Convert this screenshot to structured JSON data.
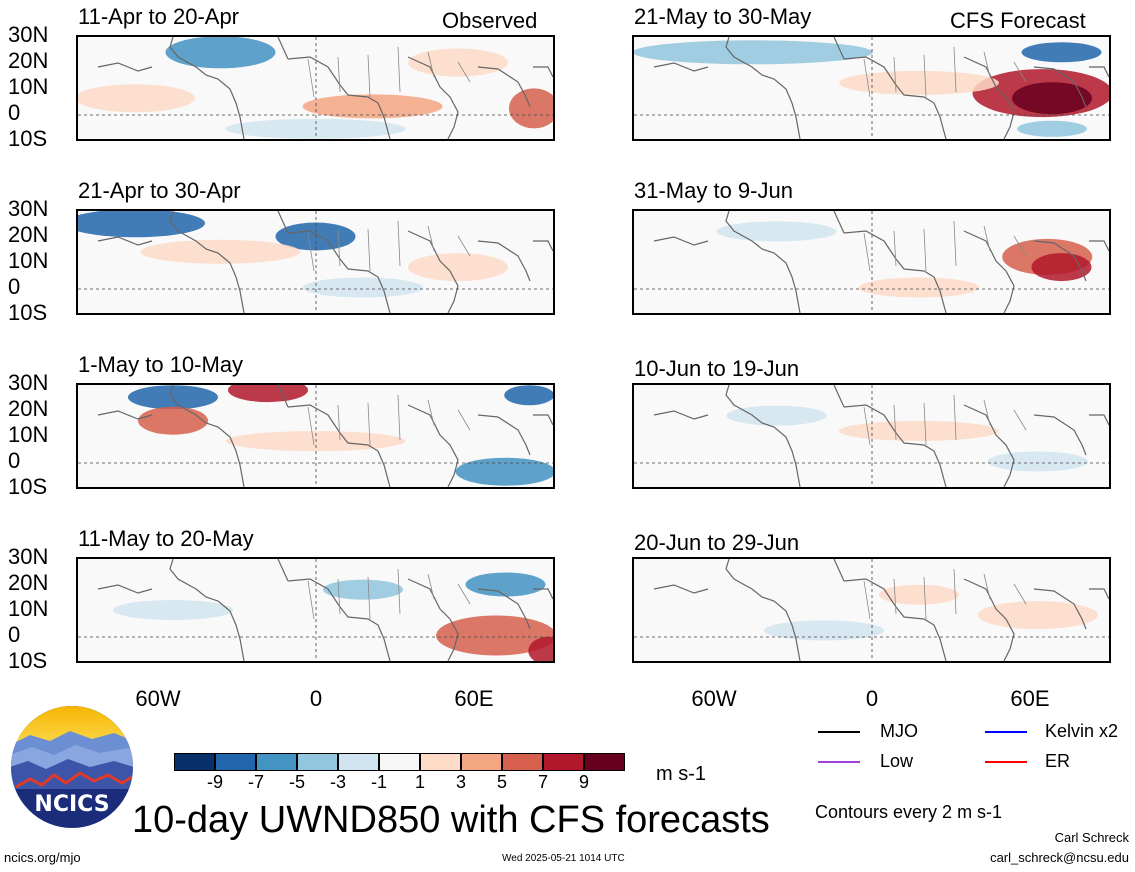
{
  "panels": [
    {
      "id": "obs1",
      "title": "11-Apr to 20-Apr",
      "tag": "Observed"
    },
    {
      "id": "obs2",
      "title": "21-Apr to 30-Apr",
      "tag": ""
    },
    {
      "id": "obs3",
      "title": "1-May to 10-May",
      "tag": ""
    },
    {
      "id": "obs4",
      "title": "11-May to 20-May",
      "tag": ""
    },
    {
      "id": "fc1",
      "title": "21-May to 30-May",
      "tag": "CFS Forecast"
    },
    {
      "id": "fc2",
      "title": "31-May to 9-Jun",
      "tag": ""
    },
    {
      "id": "fc3",
      "title": "10-Jun to 19-Jun",
      "tag": ""
    },
    {
      "id": "fc4",
      "title": "20-Jun to 29-Jun",
      "tag": ""
    }
  ],
  "lat_labels": [
    "30N",
    "20N",
    "10N",
    "0",
    "10S"
  ],
  "lon_labels": [
    "60W",
    "0",
    "60E"
  ],
  "colorbar": {
    "colors": [
      "#08306b",
      "#2166ac",
      "#4393c3",
      "#92c5de",
      "#d1e5f0",
      "#f7f7f7",
      "#fddbc7",
      "#f4a582",
      "#d6604d",
      "#b2182b",
      "#67001f"
    ],
    "labels": [
      "-9",
      "-7",
      "-5",
      "-3",
      "-1",
      "1",
      "3",
      "5",
      "7",
      "9"
    ],
    "unit": "m s-1"
  },
  "legend": {
    "items": [
      {
        "label": "MJO",
        "color": "#000000"
      },
      {
        "label": "Kelvin x2",
        "color": "#0000ff"
      },
      {
        "label": "Low",
        "color": "#a040e0"
      },
      {
        "label": "ER",
        "color": "#ff0000"
      }
    ],
    "contour_note": "Contours every 2 m s-1"
  },
  "main_title": "10-day UWND850 with CFS forecasts",
  "logo_text": "NCICS",
  "footer": {
    "url": "ncics.org/mjo",
    "timestamp": "Wed 2025-05-21 1014 UTC",
    "author": "Carl Schreck",
    "email": "carl_schreck@ncsu.edu"
  }
}
